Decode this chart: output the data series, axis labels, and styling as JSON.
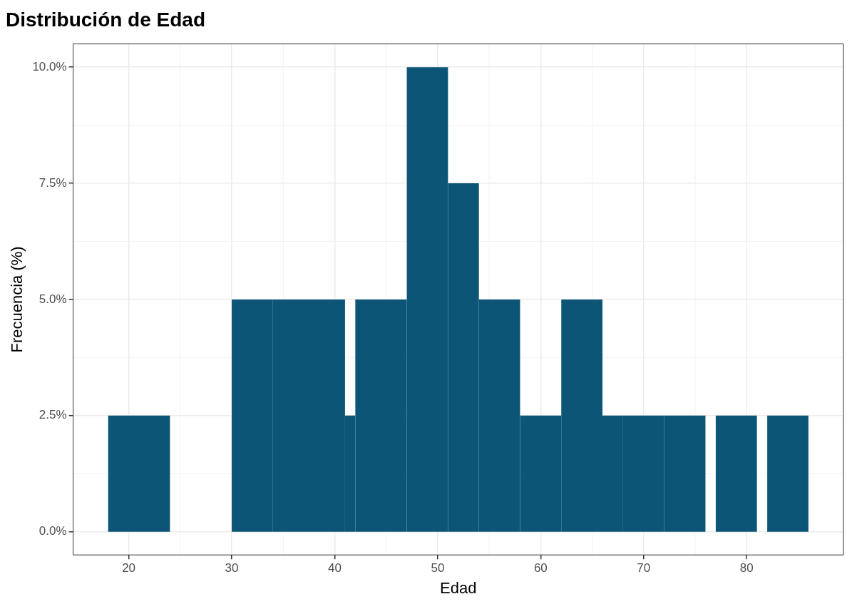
{
  "chart_data": {
    "type": "histogram",
    "title": "Distribución de Edad",
    "xlabel": "Edad",
    "ylabel": "Frecuencia (%)",
    "bins": [
      18,
      24,
      30,
      34,
      41,
      42,
      47,
      51,
      54,
      58,
      62,
      66,
      68,
      72,
      76,
      77,
      81,
      82,
      86
    ],
    "values": [
      2.5,
      0,
      5,
      5,
      2.5,
      5,
      10,
      7.5,
      5,
      2.5,
      5,
      2.5,
      2.5,
      2.5,
      0,
      2.5,
      0,
      2.5
    ],
    "color": "#0c5577",
    "xlim": [
      14.6,
      89.4
    ],
    "xticks": [
      20,
      30,
      40,
      50,
      60,
      70,
      80
    ],
    "ylim": [
      -0.5,
      10.5
    ],
    "yticks": [
      {
        "value": 0,
        "label": "0.0%"
      },
      {
        "value": 2.5,
        "label": "2.5%"
      },
      {
        "value": 5,
        "label": "5.0%"
      },
      {
        "value": 7.5,
        "label": "7.5%"
      },
      {
        "value": 10,
        "label": "10.0%"
      }
    ],
    "grid": true,
    "legend": false
  }
}
